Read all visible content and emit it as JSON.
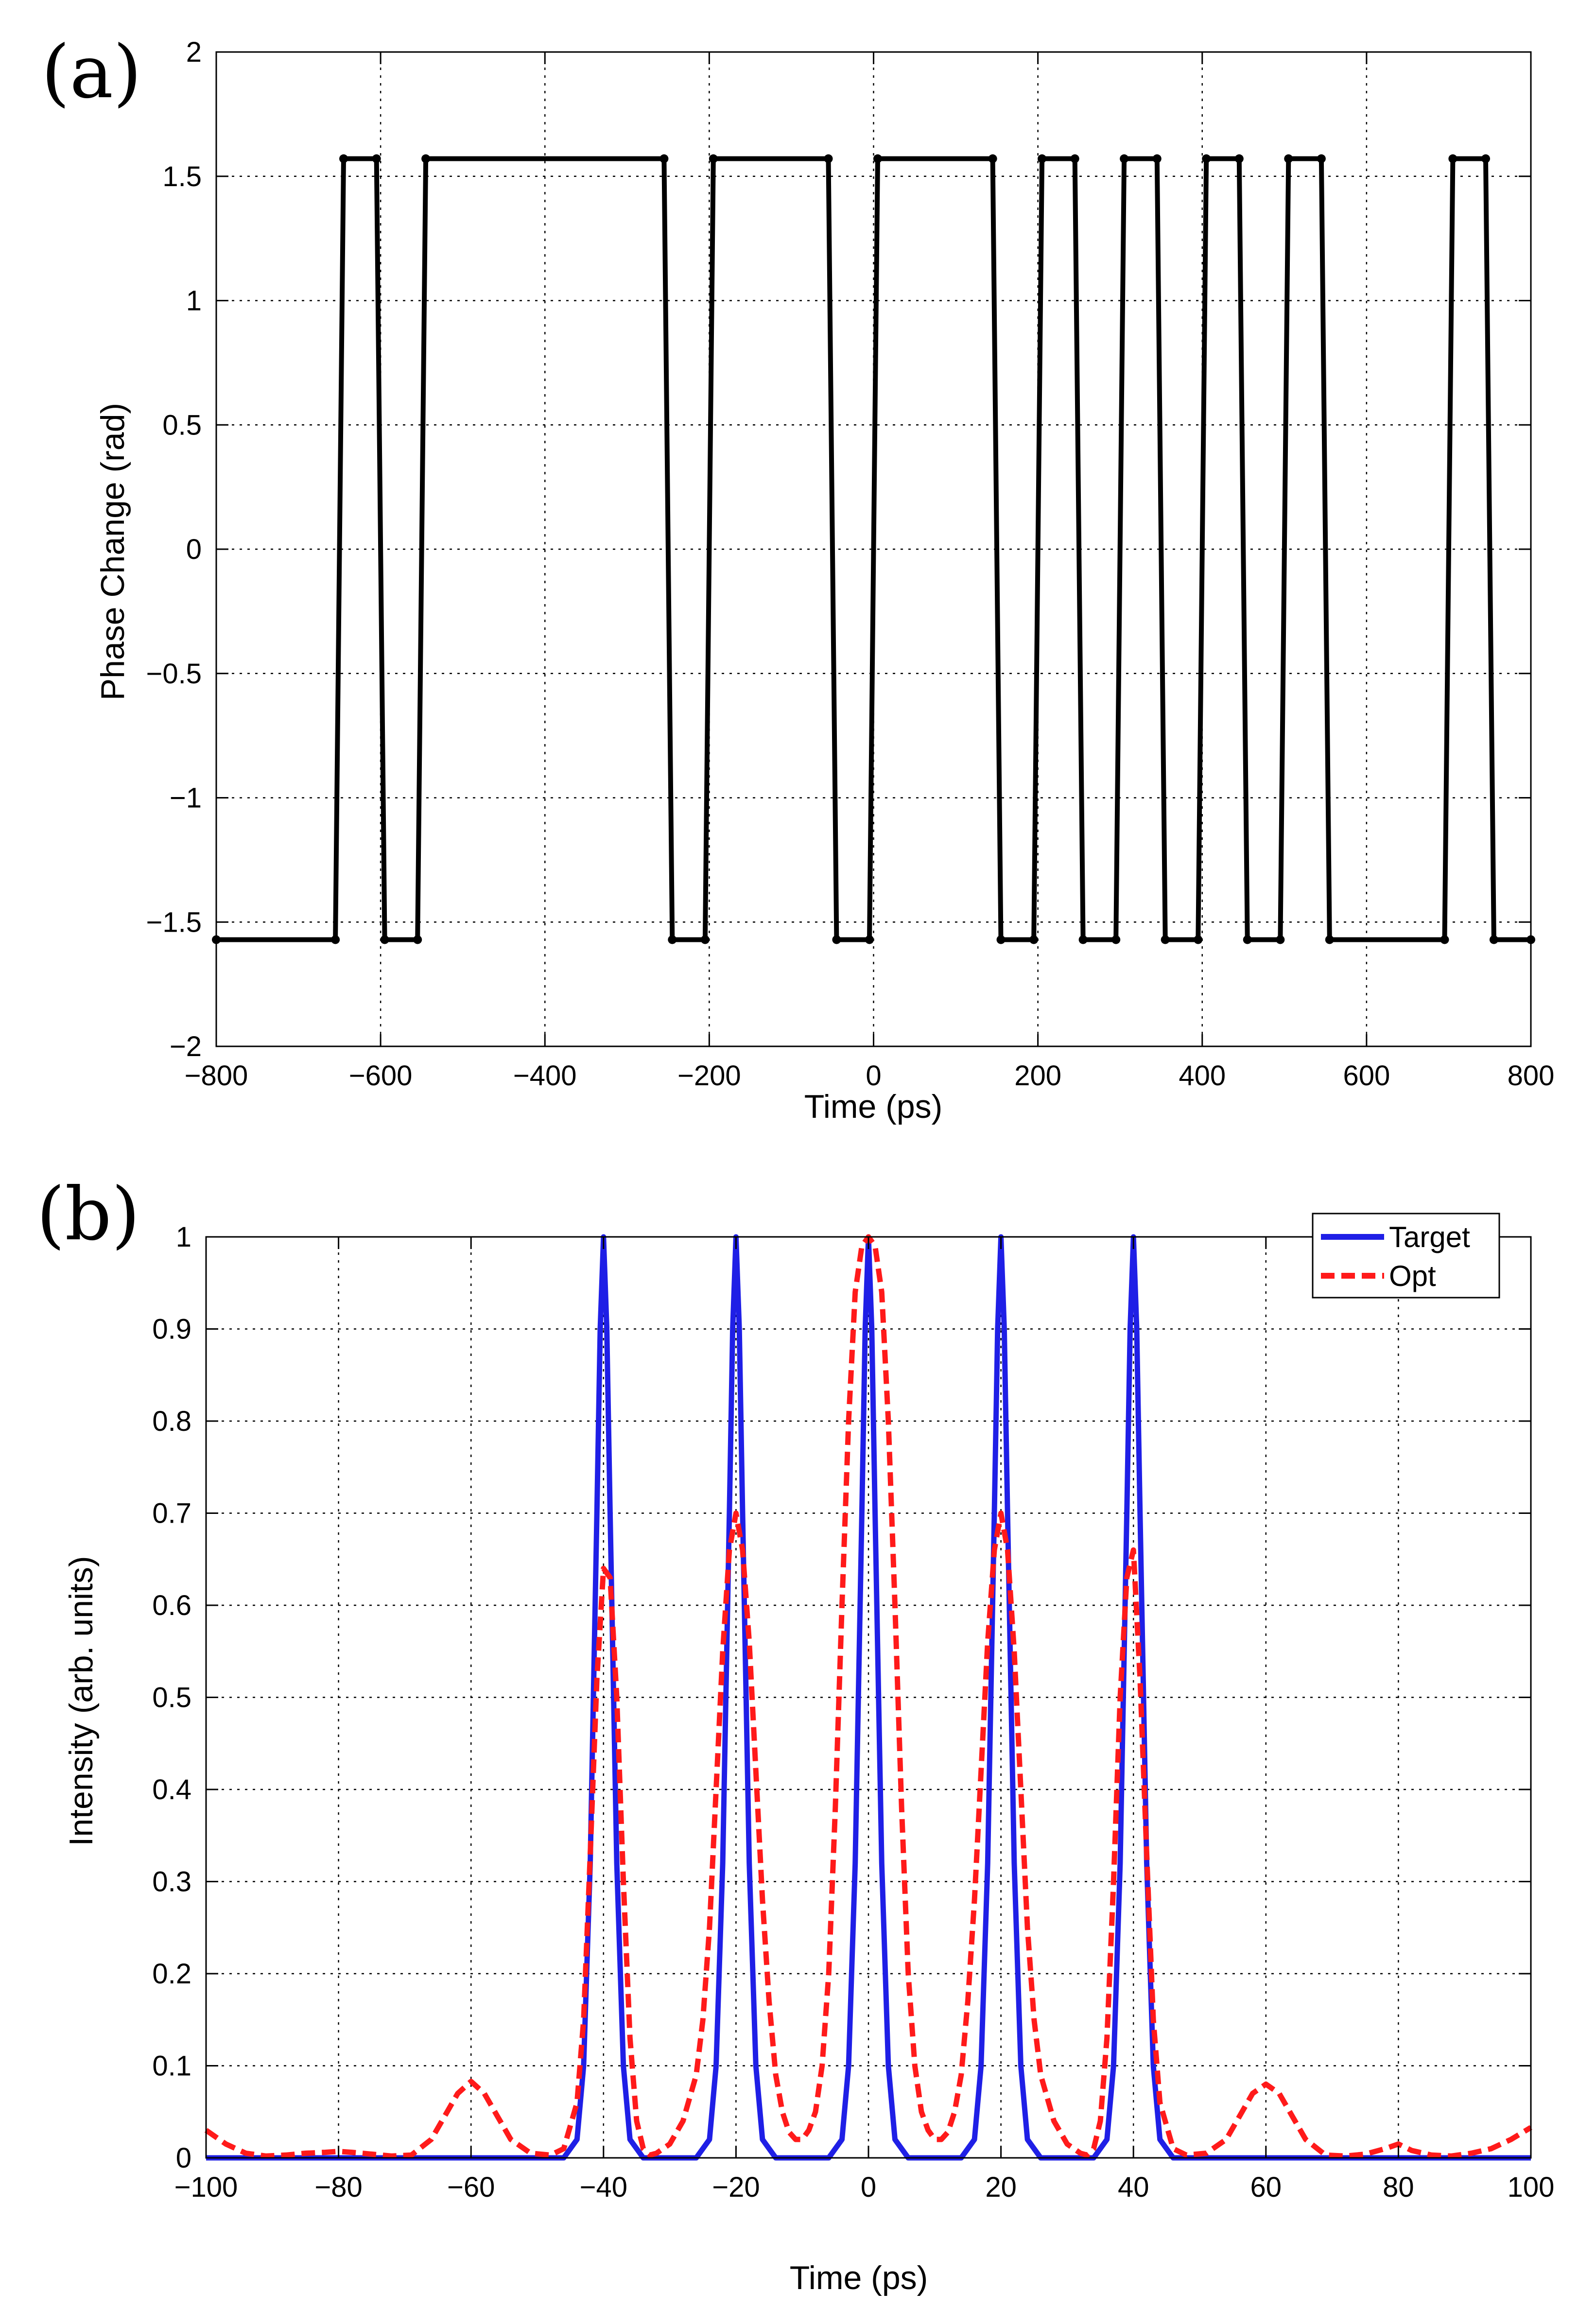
{
  "chart_data": [
    {
      "panel_label": "(a)",
      "type": "line",
      "title": "",
      "xlabel": "Time (ps)",
      "ylabel": "Phase Change (rad)",
      "xlim": [
        -800,
        800
      ],
      "ylim": [
        -2,
        2
      ],
      "grid": true,
      "xticks": [
        -800,
        -600,
        -400,
        -200,
        0,
        200,
        400,
        600,
        800
      ],
      "xtick_labels": [
        "−800",
        "−600",
        "−400",
        "−200",
        "0",
        "200",
        "400",
        "600",
        "800"
      ],
      "yticks": [
        -2,
        -1.5,
        -1,
        -0.5,
        0,
        0.5,
        1,
        1.5,
        2
      ],
      "ytick_labels": [
        "−2",
        "−1.5",
        "−1",
        "−0.5",
        "0",
        "0.5",
        "1",
        "1.5",
        "2"
      ],
      "series": [
        {
          "name": "Phase",
          "color": "#000000",
          "x": [
            -800,
            -655,
            -645,
            -605,
            -595,
            -555,
            -545,
            -255,
            -245,
            -205,
            -195,
            -55,
            -45,
            -5,
            5,
            145,
            155,
            195,
            205,
            245,
            255,
            295,
            305,
            345,
            355,
            395,
            405,
            445,
            455,
            495,
            505,
            545,
            555,
            695,
            705,
            745,
            755,
            800
          ],
          "y": [
            -1.5708,
            -1.5708,
            1.5708,
            1.5708,
            -1.5708,
            -1.5708,
            1.5708,
            1.5708,
            -1.5708,
            -1.5708,
            1.5708,
            1.5708,
            -1.5708,
            -1.5708,
            1.5708,
            1.5708,
            -1.5708,
            -1.5708,
            1.5708,
            1.5708,
            -1.5708,
            -1.5708,
            1.5708,
            1.5708,
            -1.5708,
            -1.5708,
            1.5708,
            1.5708,
            -1.5708,
            -1.5708,
            1.5708,
            1.5708,
            -1.5708,
            -1.5708,
            1.5708,
            1.5708,
            -1.5708,
            -1.5708
          ]
        }
      ]
    },
    {
      "panel_label": "(b)",
      "type": "line",
      "title": "",
      "xlabel": "Time (ps)",
      "ylabel": "Intensity (arb. units)",
      "xlim": [
        -100,
        100
      ],
      "ylim": [
        0,
        1
      ],
      "grid": true,
      "legend_position": "top-right",
      "xticks": [
        -100,
        -80,
        -60,
        -40,
        -20,
        0,
        20,
        40,
        60,
        80,
        100
      ],
      "xtick_labels": [
        "−100",
        "−80",
        "−60",
        "−40",
        "−20",
        "0",
        "20",
        "40",
        "60",
        "80",
        "100"
      ],
      "yticks": [
        0,
        0.1,
        0.2,
        0.3,
        0.4,
        0.5,
        0.6,
        0.7,
        0.8,
        0.9,
        1
      ],
      "ytick_labels": [
        "0",
        "0.1",
        "0.2",
        "0.3",
        "0.4",
        "0.5",
        "0.6",
        "0.7",
        "0.8",
        "0.9",
        "1"
      ],
      "series": [
        {
          "name": "Target",
          "color": "#1f1fe6",
          "dash": "solid",
          "x": [
            -100,
            -46,
            -44,
            -43,
            -42,
            -41,
            -40.5,
            -40,
            -39.5,
            -39,
            -38,
            -37,
            -36,
            -34,
            -26,
            -24,
            -23,
            -22,
            -21,
            -20.5,
            -20,
            -19.5,
            -19,
            -18,
            -17,
            -16,
            -14,
            -6,
            -4,
            -3,
            -2,
            -1,
            -0.5,
            0,
            0.5,
            1,
            2,
            3,
            4,
            6,
            14,
            16,
            17,
            18,
            19,
            19.5,
            20,
            20.5,
            21,
            22,
            23,
            24,
            26,
            34,
            36,
            37,
            38,
            39,
            39.5,
            40,
            40.5,
            41,
            42,
            43,
            44,
            46,
            100
          ],
          "y": [
            0,
            0,
            0.02,
            0.1,
            0.32,
            0.7,
            0.9,
            1,
            0.9,
            0.7,
            0.32,
            0.1,
            0.02,
            0,
            0,
            0.02,
            0.1,
            0.32,
            0.7,
            0.9,
            1,
            0.9,
            0.7,
            0.32,
            0.1,
            0.02,
            0,
            0,
            0.02,
            0.1,
            0.32,
            0.7,
            0.9,
            1,
            0.9,
            0.7,
            0.32,
            0.1,
            0.02,
            0,
            0,
            0.02,
            0.1,
            0.32,
            0.7,
            0.9,
            1,
            0.9,
            0.7,
            0.32,
            0.1,
            0.02,
            0,
            0,
            0.02,
            0.1,
            0.32,
            0.7,
            0.9,
            1,
            0.9,
            0.7,
            0.32,
            0.1,
            0.02,
            0,
            0
          ]
        },
        {
          "name": "Opt",
          "color": "#ff1a1a",
          "dash": "dashed",
          "x": [
            -100,
            -97,
            -94,
            -91,
            -88,
            -85,
            -82,
            -80,
            -78,
            -75,
            -72,
            -69,
            -66,
            -64,
            -62,
            -60,
            -58,
            -56,
            -54,
            -51,
            -48,
            -46,
            -44,
            -43,
            -42,
            -41,
            -40,
            -39,
            -38,
            -37,
            -36,
            -35,
            -34,
            -33,
            -32,
            -30,
            -28,
            -26,
            -25,
            -24,
            -23,
            -22,
            -21,
            -20,
            -19,
            -18,
            -17,
            -16,
            -15,
            -14,
            -13,
            -12,
            -11,
            -10,
            -9,
            -8,
            -7,
            -6,
            -5,
            -4,
            -3,
            -2,
            -1,
            0,
            1,
            2,
            3,
            4,
            5,
            6,
            7,
            8,
            9,
            10,
            11,
            12,
            13,
            14,
            15,
            16,
            17,
            18,
            19,
            20,
            21,
            22,
            23,
            24,
            25,
            26,
            28,
            30,
            32,
            33,
            34,
            35,
            36,
            37,
            38,
            39,
            40,
            41,
            42,
            43,
            44,
            46,
            48,
            51,
            54,
            56,
            58,
            60,
            62,
            64,
            66,
            69,
            72,
            75,
            78,
            80,
            82,
            85,
            88,
            91,
            94,
            97,
            100
          ],
          "y": [
            0.03,
            0.015,
            0.005,
            0.002,
            0.003,
            0.005,
            0.006,
            0.007,
            0.006,
            0.004,
            0.002,
            0.003,
            0.02,
            0.045,
            0.07,
            0.083,
            0.07,
            0.045,
            0.02,
            0.005,
            0.003,
            0.01,
            0.06,
            0.15,
            0.33,
            0.52,
            0.64,
            0.63,
            0.5,
            0.3,
            0.13,
            0.04,
            0.01,
            0.003,
            0.005,
            0.015,
            0.04,
            0.09,
            0.15,
            0.25,
            0.4,
            0.55,
            0.66,
            0.7,
            0.66,
            0.56,
            0.42,
            0.28,
            0.17,
            0.09,
            0.05,
            0.028,
            0.02,
            0.02,
            0.03,
            0.05,
            0.1,
            0.2,
            0.38,
            0.6,
            0.8,
            0.94,
            0.99,
            1.0,
            0.99,
            0.94,
            0.8,
            0.6,
            0.38,
            0.2,
            0.1,
            0.05,
            0.03,
            0.02,
            0.02,
            0.028,
            0.05,
            0.09,
            0.17,
            0.28,
            0.42,
            0.56,
            0.66,
            0.7,
            0.66,
            0.55,
            0.4,
            0.25,
            0.15,
            0.09,
            0.04,
            0.015,
            0.005,
            0.003,
            0.01,
            0.04,
            0.13,
            0.3,
            0.5,
            0.63,
            0.66,
            0.52,
            0.33,
            0.15,
            0.06,
            0.01,
            0.003,
            0.005,
            0.02,
            0.045,
            0.07,
            0.08,
            0.07,
            0.045,
            0.02,
            0.003,
            0.002,
            0.004,
            0.01,
            0.015,
            0.008,
            0.003,
            0.002,
            0.005,
            0.01,
            0.02,
            0.033
          ]
        }
      ]
    }
  ]
}
